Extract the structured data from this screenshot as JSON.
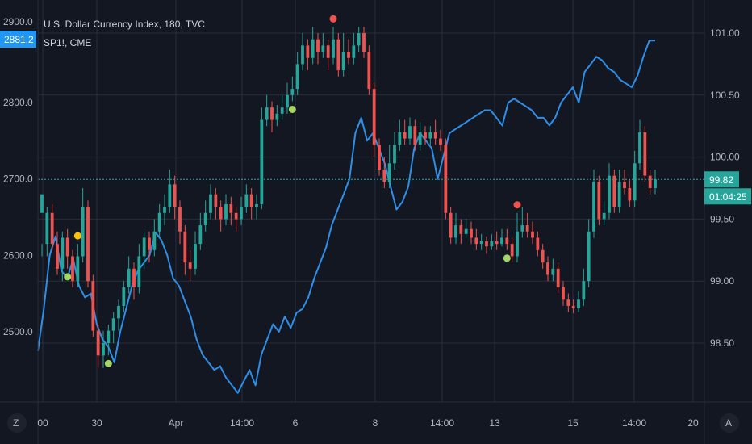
{
  "legend": {
    "main_title": "U.S. Dollar Currency Index, 180, TVC",
    "compare_title": "SP1!, CME"
  },
  "left_axis": {
    "ticks": [
      {
        "value": 2800.0,
        "label": "2800.0"
      },
      {
        "value": 2700.0,
        "label": "2700.0"
      },
      {
        "value": 2600.0,
        "label": "2600.0"
      },
      {
        "value": 2500.0,
        "label": "2500.0"
      }
    ],
    "partial_top_label": "2900.0",
    "current_badge": "2881.2"
  },
  "right_axis": {
    "ticks": [
      {
        "value": 101.0,
        "label": "101.00"
      },
      {
        "value": 100.5,
        "label": "100.50"
      },
      {
        "value": 100.0,
        "label": "100.00"
      },
      {
        "value": 99.5,
        "label": "99.50"
      },
      {
        "value": 99.0,
        "label": "99.00"
      },
      {
        "value": 98.5,
        "label": "98.50"
      }
    ],
    "current_price": "99.82",
    "countdown": "01:04:25"
  },
  "time_axis": {
    "labels": [
      "00",
      "30",
      "Apr",
      "14:00",
      "6",
      "8",
      "14:00",
      "13",
      "15",
      "14:00",
      "20"
    ],
    "left_button": "Z",
    "right_button": "A"
  },
  "colors": {
    "background": "#131722",
    "grid": "#2a2e39",
    "up": "#26a69a",
    "down": "#ef5350",
    "line": "#2f8fe8",
    "current_line": "#26a69a",
    "badge_left": "#2196f3",
    "badge_right": "#26a69a",
    "signal_red": "#ef5350",
    "signal_green": "#a5d665",
    "signal_yellow": "#ffc107"
  },
  "chart_data": {
    "type": "candlestick",
    "title": "U.S. Dollar Currency Index, 180, TVC",
    "ylim_right": [
      98.2,
      101.2
    ],
    "ylim_left": [
      2435,
      2905
    ],
    "grid": true,
    "current_price": 99.82,
    "candles": [
      [
        99.55,
        99.7,
        99.3,
        99.2
      ],
      [
        99.3,
        99.55,
        99.6,
        99.2
      ],
      [
        99.55,
        99.3,
        99.62,
        99.25
      ],
      [
        99.3,
        99.1,
        99.4,
        99.05
      ],
      [
        99.1,
        99.35,
        99.4,
        99.0
      ],
      [
        99.35,
        99.2,
        99.42,
        99.1
      ],
      [
        99.2,
        99.0,
        99.25,
        98.95
      ],
      [
        99.0,
        99.2,
        99.3,
        98.95
      ],
      [
        99.2,
        99.6,
        99.75,
        99.15
      ],
      [
        99.6,
        99.0,
        99.65,
        98.95
      ],
      [
        99.0,
        98.6,
        99.05,
        98.55
      ],
      [
        98.6,
        98.4,
        98.65,
        98.3
      ],
      [
        98.4,
        98.5,
        98.6,
        98.3
      ],
      [
        98.5,
        98.6,
        98.65,
        98.4
      ],
      [
        98.6,
        98.7,
        98.75,
        98.5
      ],
      [
        98.7,
        98.8,
        98.85,
        98.6
      ],
      [
        98.8,
        98.95,
        99.0,
        98.75
      ],
      [
        98.95,
        99.1,
        99.2,
        98.9
      ],
      [
        99.1,
        98.95,
        99.15,
        98.85
      ],
      [
        98.95,
        99.2,
        99.3,
        98.9
      ],
      [
        99.2,
        99.35,
        99.4,
        99.1
      ],
      [
        99.35,
        99.25,
        99.4,
        99.15
      ],
      [
        99.25,
        99.4,
        99.5,
        99.2
      ],
      [
        99.4,
        99.55,
        99.62,
        99.35
      ],
      [
        99.55,
        99.6,
        99.7,
        99.45
      ],
      [
        99.6,
        99.78,
        99.9,
        99.55
      ],
      [
        99.78,
        99.6,
        99.85,
        99.5
      ],
      [
        99.6,
        99.4,
        99.65,
        99.3
      ],
      [
        99.4,
        99.15,
        99.45,
        99.05
      ],
      [
        99.15,
        99.1,
        99.25,
        99.0
      ],
      [
        99.1,
        99.3,
        99.4,
        99.05
      ],
      [
        99.3,
        99.45,
        99.55,
        99.25
      ],
      [
        99.45,
        99.55,
        99.65,
        99.4
      ],
      [
        99.55,
        99.7,
        99.78,
        99.5
      ],
      [
        99.7,
        99.6,
        99.75,
        99.5
      ],
      [
        99.6,
        99.5,
        99.65,
        99.4
      ],
      [
        99.5,
        99.62,
        99.7,
        99.45
      ],
      [
        99.62,
        99.55,
        99.68,
        99.45
      ],
      [
        99.55,
        99.5,
        99.6,
        99.4
      ],
      [
        99.5,
        99.6,
        99.68,
        99.45
      ],
      [
        99.6,
        99.7,
        99.78,
        99.55
      ],
      [
        99.7,
        99.6,
        99.75,
        99.5
      ],
      [
        99.6,
        99.62,
        99.7,
        99.5
      ],
      [
        99.62,
        100.3,
        100.4,
        99.58
      ],
      [
        100.3,
        100.4,
        100.5,
        100.25
      ],
      [
        100.4,
        100.3,
        100.45,
        100.2
      ],
      [
        100.3,
        100.35,
        100.42,
        100.25
      ],
      [
        100.35,
        100.4,
        100.5,
        100.3
      ],
      [
        100.4,
        100.5,
        100.6,
        100.35
      ],
      [
        100.5,
        100.55,
        100.65,
        100.45
      ],
      [
        100.55,
        100.75,
        100.85,
        100.5
      ],
      [
        100.75,
        100.9,
        101.0,
        100.7
      ],
      [
        100.9,
        100.8,
        100.95,
        100.7
      ],
      [
        100.8,
        100.95,
        101.05,
        100.75
      ],
      [
        100.95,
        100.85,
        101.0,
        100.75
      ],
      [
        100.85,
        100.9,
        101.0,
        100.8
      ],
      [
        100.9,
        100.8,
        100.95,
        100.7
      ],
      [
        100.8,
        100.95,
        101.05,
        100.75
      ],
      [
        100.95,
        100.7,
        101.0,
        100.65
      ],
      [
        100.7,
        100.85,
        101.0,
        100.65
      ],
      [
        100.85,
        100.8,
        100.95,
        100.75
      ],
      [
        100.8,
        100.9,
        101.0,
        100.75
      ],
      [
        100.9,
        101.0,
        101.05,
        100.85
      ],
      [
        101.0,
        100.85,
        101.05,
        100.8
      ],
      [
        100.85,
        100.55,
        100.9,
        100.5
      ],
      [
        100.55,
        100.1,
        100.6,
        100.0
      ],
      [
        100.1,
        99.9,
        100.15,
        99.85
      ],
      [
        99.9,
        99.8,
        100.0,
        99.75
      ],
      [
        99.8,
        99.95,
        100.1,
        99.75
      ],
      [
        99.95,
        100.1,
        100.2,
        99.9
      ],
      [
        100.1,
        100.2,
        100.3,
        100.05
      ],
      [
        100.2,
        100.15,
        100.3,
        100.1
      ],
      [
        100.15,
        100.25,
        100.32,
        100.1
      ],
      [
        100.25,
        100.1,
        100.3,
        100.05
      ],
      [
        100.1,
        100.2,
        100.28,
        100.05
      ],
      [
        100.2,
        100.15,
        100.25,
        100.1
      ],
      [
        100.15,
        100.2,
        100.25,
        100.1
      ],
      [
        100.2,
        100.15,
        100.3,
        100.1
      ],
      [
        100.15,
        100.1,
        100.22,
        100.05
      ],
      [
        100.1,
        99.55,
        100.15,
        99.5
      ],
      [
        99.55,
        99.35,
        99.6,
        99.3
      ],
      [
        99.35,
        99.45,
        99.55,
        99.3
      ],
      [
        99.45,
        99.38,
        99.5,
        99.3
      ],
      [
        99.38,
        99.42,
        99.5,
        99.35
      ],
      [
        99.42,
        99.35,
        99.48,
        99.3
      ],
      [
        99.35,
        99.3,
        99.42,
        99.25
      ],
      [
        99.3,
        99.32,
        99.38,
        99.25
      ],
      [
        99.32,
        99.28,
        99.36,
        99.22
      ],
      [
        99.28,
        99.32,
        99.38,
        99.25
      ],
      [
        99.32,
        99.3,
        99.4,
        99.25
      ],
      [
        99.3,
        99.35,
        99.42,
        99.28
      ],
      [
        99.35,
        99.3,
        99.42,
        99.25
      ],
      [
        99.3,
        99.2,
        99.35,
        99.15
      ],
      [
        99.2,
        99.4,
        99.55,
        99.15
      ],
      [
        99.4,
        99.45,
        99.6,
        99.35
      ],
      [
        99.45,
        99.4,
        99.55,
        99.35
      ],
      [
        99.4,
        99.35,
        99.48,
        99.3
      ],
      [
        99.35,
        99.25,
        99.4,
        99.2
      ],
      [
        99.25,
        99.15,
        99.3,
        99.1
      ],
      [
        99.15,
        99.05,
        99.2,
        99.0
      ],
      [
        99.05,
        99.1,
        99.18,
        99.0
      ],
      [
        99.1,
        98.95,
        99.15,
        98.9
      ],
      [
        98.95,
        98.85,
        99.0,
        98.8
      ],
      [
        98.85,
        98.8,
        98.9,
        98.75
      ],
      [
        98.8,
        98.78,
        98.85,
        98.74
      ],
      [
        98.78,
        98.85,
        98.92,
        98.75
      ],
      [
        98.85,
        99.0,
        99.1,
        98.8
      ],
      [
        99.0,
        99.4,
        99.5,
        98.95
      ],
      [
        99.4,
        99.8,
        99.9,
        99.35
      ],
      [
        99.8,
        99.5,
        99.85,
        99.45
      ],
      [
        99.5,
        99.55,
        99.65,
        99.45
      ],
      [
        99.55,
        99.85,
        99.95,
        99.5
      ],
      [
        99.85,
        99.6,
        99.9,
        99.55
      ],
      [
        99.6,
        99.8,
        99.9,
        99.55
      ],
      [
        99.8,
        99.75,
        99.9,
        99.7
      ],
      [
        99.75,
        99.65,
        99.82,
        99.6
      ],
      [
        99.65,
        99.95,
        100.05,
        99.6
      ],
      [
        99.95,
        100.2,
        100.3,
        99.9
      ],
      [
        100.2,
        99.85,
        100.25,
        99.8
      ],
      [
        99.85,
        99.75,
        99.9,
        99.7
      ],
      [
        99.75,
        99.82,
        99.9,
        99.7
      ]
    ],
    "compare_line_left_units": [
      2475,
      2530,
      2600,
      2625,
      2580,
      2570,
      2595,
      2560,
      2545,
      2550,
      2510,
      2490,
      2480,
      2460,
      2500,
      2530,
      2560,
      2580,
      2590,
      2600,
      2630,
      2620,
      2600,
      2570,
      2560,
      2540,
      2520,
      2490,
      2470,
      2460,
      2450,
      2455,
      2440,
      2430,
      2420,
      2435,
      2450,
      2430,
      2470,
      2490,
      2510,
      2500,
      2520,
      2505,
      2525,
      2530,
      2545,
      2570,
      2590,
      2610,
      2640,
      2660,
      2680,
      2700,
      2760,
      2780,
      2750,
      2760,
      2740,
      2720,
      2690,
      2660,
      2670,
      2690,
      2740,
      2760,
      2750,
      2740,
      2700,
      2730,
      2760,
      2765,
      2770,
      2775,
      2780,
      2785,
      2790,
      2790,
      2780,
      2770,
      2800,
      2805,
      2800,
      2795,
      2790,
      2780,
      2780,
      2770,
      2780,
      2800,
      2810,
      2820,
      2800,
      2840,
      2850,
      2860,
      2855,
      2845,
      2840,
      2830,
      2825,
      2820,
      2835,
      2860,
      2881,
      2881
    ],
    "signals": [
      {
        "type": "red",
        "candle_index": 57,
        "at": "high"
      },
      {
        "type": "red",
        "candle_index": 93,
        "at": "high"
      },
      {
        "type": "green",
        "candle_index": 49,
        "at": "low"
      },
      {
        "type": "green",
        "candle_index": 13,
        "at": "low"
      },
      {
        "type": "green",
        "candle_index": 5,
        "at": "low"
      },
      {
        "type": "green",
        "candle_index": 91,
        "at": "low"
      },
      {
        "type": "yellow",
        "candle_index": 7,
        "at": "high"
      }
    ]
  }
}
